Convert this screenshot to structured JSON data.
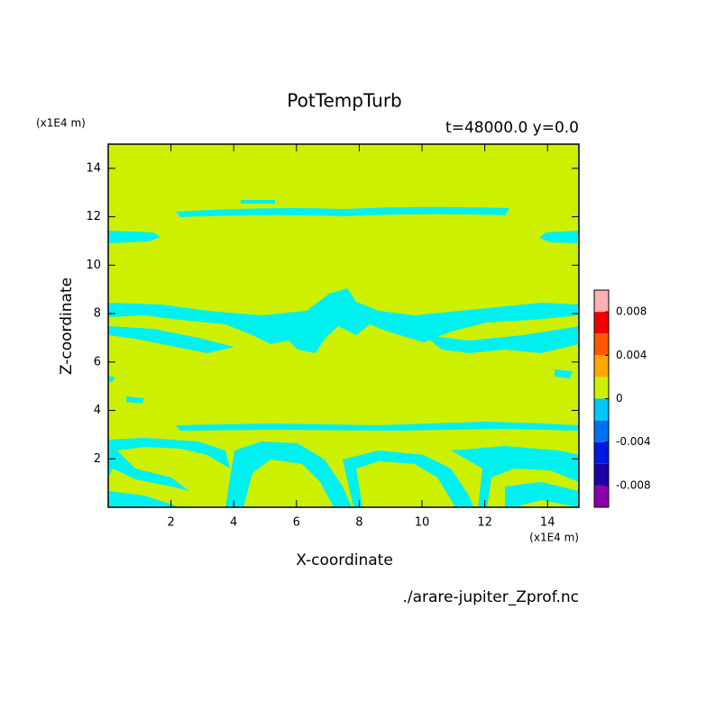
{
  "chart_data": {
    "type": "contour",
    "title": "PotTempTurb",
    "subtitle": "t=48000.0 y=0.0",
    "x_label": "X-coordinate",
    "y_label": "Z-coordinate",
    "x_unit": "(x1E4 m)",
    "y_unit": "(x1E4 m)",
    "source": "./arare-jupiter_Zprof.nc",
    "xlim": [
      0,
      15
    ],
    "xticks": [
      2,
      4,
      6,
      8,
      10,
      12,
      14
    ],
    "ylim": [
      0,
      15
    ],
    "yticks": [
      2,
      4,
      6,
      8,
      10,
      12,
      14
    ],
    "levels": [
      -0.01,
      -0.008,
      -0.006,
      -0.004,
      -0.002,
      0,
      0.002,
      0.004,
      0.006,
      0.008,
      0.01
    ],
    "colors": [
      "#8a00a8",
      "#1c00a8",
      "#0018e0",
      "#0070f0",
      "#00c8f8",
      "#00f0f0",
      "#ccf000",
      "#ffa800",
      "#ff5800",
      "#f00000",
      "#ffb0b0"
    ],
    "cticks": [
      0.008,
      0.004,
      0,
      -0.004,
      -0.008
    ]
  }
}
